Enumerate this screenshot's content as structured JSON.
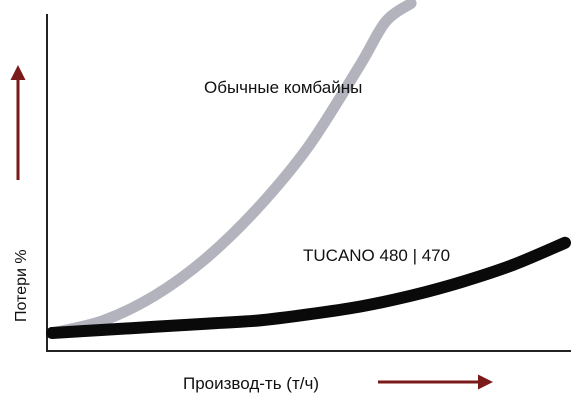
{
  "chart_data": {
    "type": "line",
    "title": "",
    "xlabel": "Производ-ть (т/ч)",
    "ylabel": "Потери %",
    "xlim": [
      0,
      100
    ],
    "ylim": [
      0,
      100
    ],
    "grid": false,
    "legend": "inline labels",
    "ticks": "none",
    "series": [
      {
        "name": "Обычные комбайны",
        "color": "#b3b3bd",
        "x": [
          0,
          10,
          20,
          30,
          40,
          50,
          60,
          65,
          70
        ],
        "y": [
          0,
          4,
          12,
          24,
          40,
          60,
          86,
          100,
          106
        ]
      },
      {
        "name": "TUCANO 480 | 470",
        "color": "#0a0a0a",
        "x": [
          0,
          10,
          20,
          30,
          40,
          50,
          60,
          70,
          80,
          90,
          100
        ],
        "y": [
          0,
          1,
          2,
          3,
          4,
          6,
          8.5,
          12,
          16.5,
          22,
          29
        ]
      }
    ],
    "axis_color": "#7a1a1a"
  }
}
